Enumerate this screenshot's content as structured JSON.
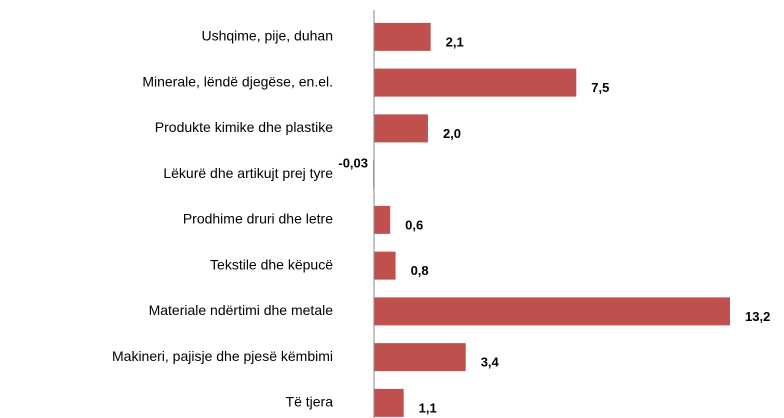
{
  "chart_data": {
    "type": "bar",
    "orientation": "horizontal",
    "categories": [
      "Ushqime, pije, duhan",
      "Minerale, lëndë djegëse, en.el.",
      "Produkte kimike dhe plastike",
      "Lëkurë dhe artikujt prej tyre",
      "Prodhime druri dhe letre",
      "Tekstile dhe këpucë",
      "Materiale ndërtimi dhe metale",
      "Makineri, pajisje dhe pjesë këmbimi",
      "Të tjera"
    ],
    "values": [
      2.1,
      7.5,
      2.0,
      -0.03,
      0.6,
      0.8,
      13.2,
      3.4,
      1.1
    ],
    "value_labels": [
      "2,1",
      "7,5",
      "2,0",
      "-0,03",
      "0,6",
      "0,8",
      "13,2",
      "3,4",
      "1,1"
    ],
    "color": "#c0504d"
  }
}
